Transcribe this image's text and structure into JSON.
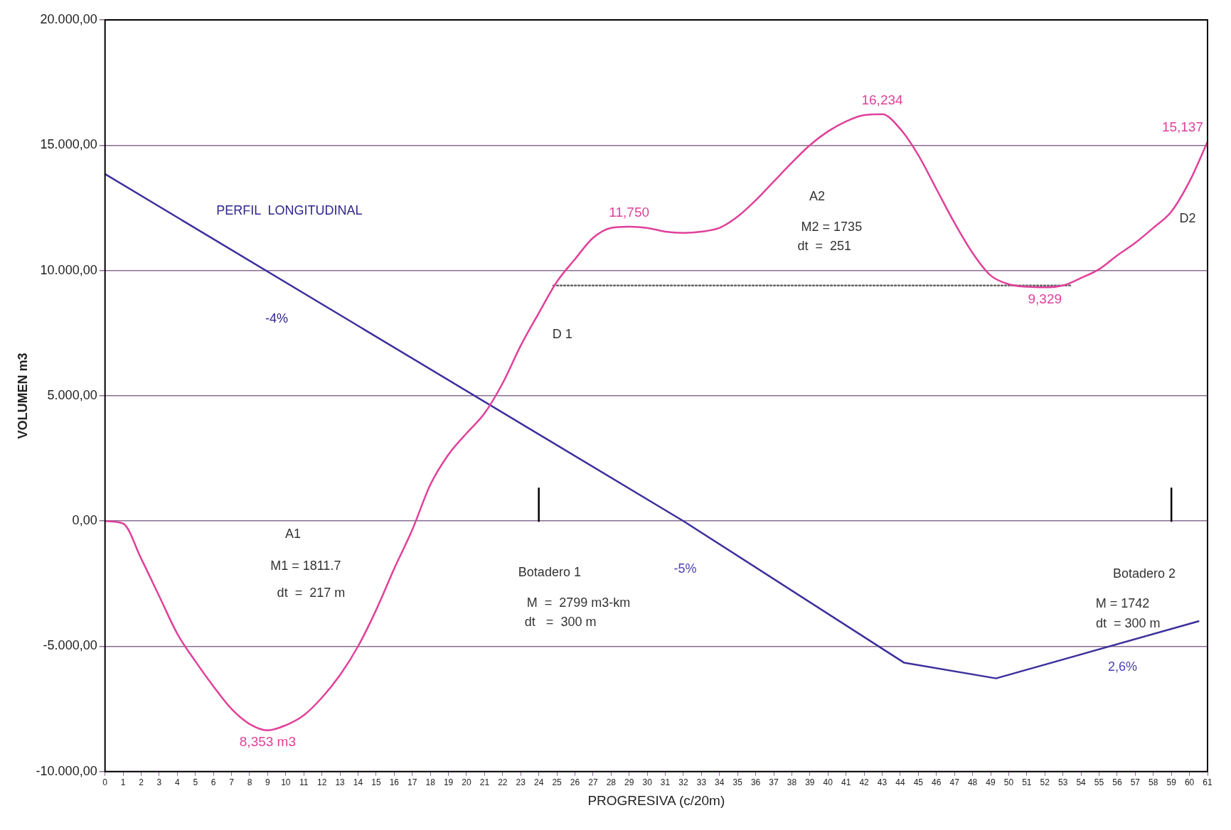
{
  "chart_data": {
    "type": "line",
    "xlabel": "PROGRESIVA (c/20m)",
    "ylabel": "VOLUMEN m3",
    "xlim": [
      0,
      61
    ],
    "xticks": [
      0,
      1,
      2,
      3,
      4,
      5,
      6,
      7,
      8,
      9,
      10,
      11,
      12,
      13,
      14,
      15,
      16,
      17,
      18,
      19,
      20,
      21,
      22,
      23,
      24,
      25,
      26,
      27,
      28,
      29,
      30,
      31,
      32,
      33,
      34,
      35,
      36,
      37,
      38,
      39,
      40,
      41,
      42,
      43,
      44,
      45,
      46,
      47,
      48,
      49,
      50,
      51,
      52,
      53,
      54,
      55,
      56,
      57,
      58,
      59,
      60,
      61
    ],
    "ylim": [
      -10000,
      20000
    ],
    "yticks": [
      {
        "value": -10000,
        "label": "-10.000,00"
      },
      {
        "value": -5000,
        "label": "-5.000,00"
      },
      {
        "value": 0,
        "label": "0,00"
      },
      {
        "value": 5000,
        "label": "5.000,00"
      },
      {
        "value": 10000,
        "label": "10.000,00"
      },
      {
        "value": 15000,
        "label": "15.000,00"
      },
      {
        "value": 20000,
        "label": "20.000,00"
      }
    ],
    "grid": "y",
    "legend": false,
    "marker": "none",
    "series": [
      {
        "color": "#e0409a",
        "line_style": "solid",
        "x": [
          0,
          1,
          2,
          3,
          4,
          5,
          6,
          7,
          8,
          9,
          10,
          11,
          12,
          13,
          14,
          15,
          16,
          17,
          18,
          19,
          20,
          21,
          22,
          23,
          24,
          25,
          26,
          27,
          28,
          29,
          30,
          31,
          32,
          33,
          34,
          35,
          36,
          37,
          38,
          39,
          40,
          41,
          42,
          43,
          44,
          45,
          46,
          47,
          48,
          49,
          50,
          51,
          52,
          53,
          54,
          55,
          56,
          57,
          58,
          59,
          60,
          61
        ],
        "values": [
          0,
          -100,
          -1500,
          -3000,
          -4500,
          -5600,
          -6600,
          -7500,
          -8100,
          -8353,
          -8150,
          -7750,
          -7050,
          -6150,
          -5000,
          -3550,
          -1900,
          -350,
          1450,
          2650,
          3500,
          4300,
          5500,
          7000,
          8300,
          9550,
          10450,
          11300,
          11700,
          11750,
          11700,
          11550,
          11500,
          11550,
          11700,
          12150,
          12800,
          13550,
          14300,
          15000,
          15550,
          15950,
          16200,
          16234,
          15650,
          14600,
          13250,
          11900,
          10700,
          9800,
          9450,
          9350,
          9329,
          9400,
          9700,
          10050,
          10600,
          11100,
          11700,
          12350,
          13550,
          15137
        ],
        "value_labels": [
          null,
          null,
          null,
          null,
          null,
          null,
          null,
          null,
          null,
          null,
          null,
          null,
          null,
          null,
          null,
          null,
          null,
          null,
          null,
          null,
          null,
          null,
          null,
          null,
          null,
          null,
          null,
          null,
          null,
          "11,750",
          null,
          null,
          null,
          null,
          null,
          null,
          null,
          null,
          null,
          null,
          null,
          null,
          null,
          "16,234",
          null,
          null,
          null,
          null,
          null,
          null,
          null,
          null,
          "9,329",
          null,
          null,
          null,
          null,
          null,
          null,
          null,
          null,
          "15,137"
        ]
      },
      {
        "color": "#3c2f9c",
        "line_style": "solid",
        "x": [
          0,
          32,
          44.2,
          49.3,
          60.5
        ],
        "values": [
          13850,
          0,
          -5650,
          -6280,
          -4000
        ]
      },
      {
        "color": "#666666",
        "line_style": "dotted",
        "x": [
          24.8,
          53.5
        ],
        "values": [
          9400,
          9400
        ]
      },
      {
        "color": "#000000",
        "line_style": "solid",
        "x": [
          24,
          24
        ],
        "values": [
          0,
          1300
        ]
      },
      {
        "color": "#000000",
        "line_style": "solid",
        "x": [
          59,
          59
        ],
        "values": [
          0,
          1300
        ]
      }
    ],
    "annotations": [
      "PERFIL  LONGITUDINAL",
      "-4%",
      "D 1",
      "A2",
      "M2 = 1735",
      "dt  =  251",
      "D2",
      "A1",
      "M1 = 1811.7",
      "dt  =  217 m",
      "Botadero 1",
      "-5%",
      "M  =  2799 m3-km",
      "dt   =  300 m",
      "Botadero 2",
      "M = 1742",
      "dt  = 300 m",
      "2,6%",
      {
        "text": "8,353 m3",
        "x": 9,
        "y": -8353
      }
    ]
  }
}
